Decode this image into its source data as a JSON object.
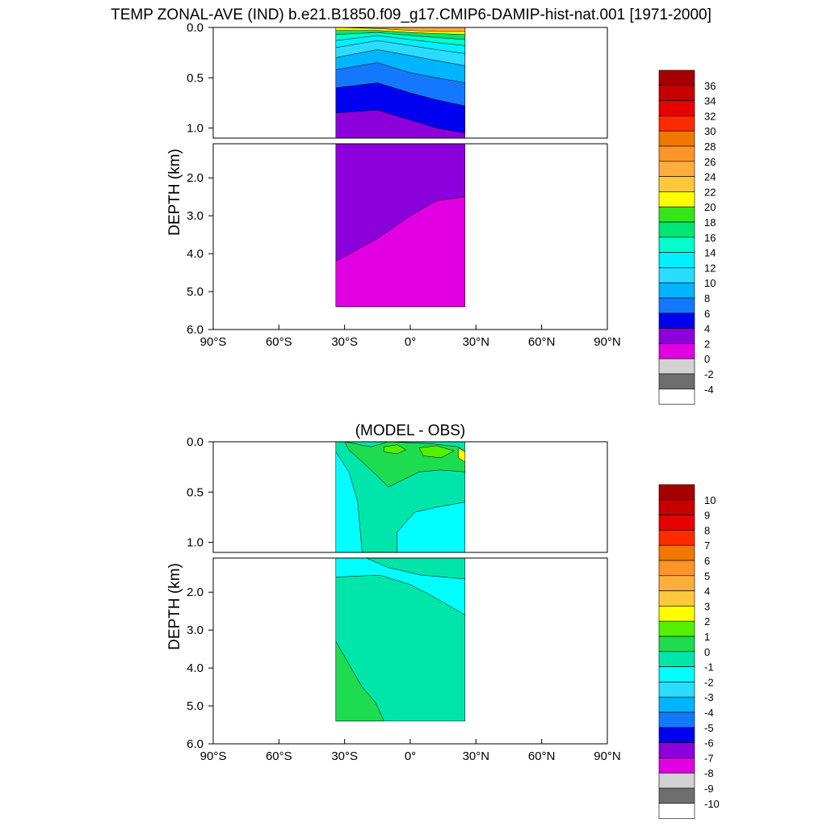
{
  "title": "TEMP ZONAL-AVE (IND) b.e21.B1850.f09_g17.CMIP6-DAMIP-hist-nat.001 [1971-2000]",
  "chart_data": [
    {
      "type": "heatmap",
      "title": "TEMP ZONAL-AVE (IND) b.e21.B1850.f09_g17.CMIP6-DAMIP-hist-nat.001 [1971-2000]",
      "ylabel": "DEPTH (km)",
      "xlim": [
        -90,
        90
      ],
      "ylim": [
        6.0,
        0.0
      ],
      "upper_panel_depth": [
        0.0,
        1.1
      ],
      "lower_panel_depth": [
        1.1,
        6.0
      ],
      "x_ticks": [
        {
          "value": -90,
          "label": "90°S"
        },
        {
          "value": -60,
          "label": "60°S"
        },
        {
          "value": -30,
          "label": "30°S"
        },
        {
          "value": 0,
          "label": "0°"
        },
        {
          "value": 30,
          "label": "30°N"
        },
        {
          "value": 60,
          "label": "60°N"
        },
        {
          "value": 90,
          "label": "90°N"
        }
      ],
      "y_ticks_upper": [
        {
          "value": 0.0,
          "label": "0.0"
        },
        {
          "value": 0.5,
          "label": "0.5"
        },
        {
          "value": 1.0,
          "label": "1.0"
        }
      ],
      "y_ticks_lower": [
        {
          "value": 2.0,
          "label": "2.0"
        },
        {
          "value": 3.0,
          "label": "3.0"
        },
        {
          "value": 4.0,
          "label": "4.0"
        },
        {
          "value": 5.0,
          "label": "5.0"
        },
        {
          "value": 6.0,
          "label": "6.0"
        }
      ],
      "colorbar": {
        "labels": [
          "36",
          "34",
          "32",
          "30",
          "28",
          "26",
          "24",
          "22",
          "20",
          "18",
          "16",
          "14",
          "12",
          "10",
          "8",
          "6",
          "4",
          "2",
          "0",
          "-2",
          "-4"
        ],
        "colors": [
          "#a50000",
          "#c80000",
          "#e60000",
          "#ff2a00",
          "#f07800",
          "#ff9428",
          "#ffad3c",
          "#ffc83c",
          "#ffff00",
          "#33e619",
          "#00e673",
          "#00ffcc",
          "#00f0ff",
          "#2adcff",
          "#00b4ff",
          "#1478ff",
          "#0000f0",
          "#8c00dc",
          "#e100e1",
          "#d2d2d2",
          "#6e6e6e",
          "#ffffff"
        ]
      },
      "ocean_extent": {
        "lat_south": -34,
        "lat_north": 25,
        "max_depth": 5.4
      },
      "field_layers": [
        {
          "value": 4,
          "depth": [
            1.1,
            1.1,
            1.1,
            1.1,
            1.1
          ]
        },
        {
          "value": 6,
          "depth": [
            0.85,
            0.82,
            0.92,
            1.0,
            1.05
          ]
        },
        {
          "value": 8,
          "depth": [
            0.6,
            0.55,
            0.65,
            0.72,
            0.78
          ]
        },
        {
          "value": 10,
          "depth": [
            0.42,
            0.35,
            0.45,
            0.5,
            0.55
          ]
        },
        {
          "value": 12,
          "depth": [
            0.3,
            0.22,
            0.28,
            0.33,
            0.38
          ]
        },
        {
          "value": 14,
          "depth": [
            0.2,
            0.13,
            0.18,
            0.22,
            0.26
          ]
        },
        {
          "value": 16,
          "depth": [
            0.13,
            0.08,
            0.12,
            0.15,
            0.18
          ]
        },
        {
          "value": 18,
          "depth": [
            0.07,
            0.05,
            0.08,
            0.1,
            0.12
          ]
        },
        {
          "value": 22,
          "depth": [
            0.03,
            0.03,
            0.05,
            0.06,
            0.07
          ]
        },
        {
          "value": 26,
          "depth": [
            0.0,
            0.01,
            0.03,
            0.04,
            0.04
          ]
        }
      ],
      "deep_layers": [
        {
          "value": 2,
          "depth": [
            4.2,
            3.6,
            3.0,
            2.6,
            2.5
          ]
        }
      ],
      "deep_base_value": 4
    },
    {
      "type": "heatmap",
      "title": "(MODEL - OBS)",
      "ylabel": "DEPTH (km)",
      "xlim": [
        -90,
        90
      ],
      "ylim": [
        6.0,
        0.0
      ],
      "upper_panel_depth": [
        0.0,
        1.1
      ],
      "lower_panel_depth": [
        1.1,
        6.0
      ],
      "x_ticks": [
        {
          "value": -90,
          "label": "90°S"
        },
        {
          "value": -60,
          "label": "60°S"
        },
        {
          "value": -30,
          "label": "30°S"
        },
        {
          "value": 0,
          "label": "0°"
        },
        {
          "value": 30,
          "label": "30°N"
        },
        {
          "value": 60,
          "label": "60°N"
        },
        {
          "value": 90,
          "label": "90°N"
        }
      ],
      "y_ticks_upper": [
        {
          "value": 0.0,
          "label": "0.0"
        },
        {
          "value": 0.5,
          "label": "0.5"
        },
        {
          "value": 1.0,
          "label": "1.0"
        }
      ],
      "y_ticks_lower": [
        {
          "value": 2.0,
          "label": "2.0"
        },
        {
          "value": 3.0,
          "label": "3.0"
        },
        {
          "value": 4.0,
          "label": "4.0"
        },
        {
          "value": 5.0,
          "label": "5.0"
        },
        {
          "value": 6.0,
          "label": "6.0"
        }
      ],
      "colorbar": {
        "labels": [
          "10",
          "9",
          "8",
          "7",
          "6",
          "5",
          "4",
          "3",
          "2",
          "1",
          "0",
          "-1",
          "-2",
          "-3",
          "-4",
          "-5",
          "-6",
          "-7",
          "-8",
          "-9",
          "-10"
        ],
        "colors": [
          "#a50000",
          "#c80000",
          "#e60000",
          "#ff2a00",
          "#f07800",
          "#ff9428",
          "#ffad3c",
          "#ffc83c",
          "#ffff00",
          "#55f000",
          "#1edc50",
          "#00e6aa",
          "#00ffff",
          "#2adcff",
          "#00b4ff",
          "#1478ff",
          "#0000f0",
          "#8c00dc",
          "#e100e1",
          "#d2d2d2",
          "#6e6e6e",
          "#ffffff"
        ]
      },
      "ocean_extent": {
        "lat_south": -34,
        "lat_north": 25,
        "max_depth": 5.4
      },
      "surface_base_value": 0,
      "surface_regions": [
        {
          "value": -1,
          "points": [
            [
              -34,
              0.1
            ],
            [
              -28,
              0.3
            ],
            [
              -24,
              0.6
            ],
            [
              -22,
              1.1
            ],
            [
              -34,
              1.1
            ]
          ]
        },
        {
          "value": -1,
          "points": [
            [
              -6,
              0.9
            ],
            [
              2,
              0.7
            ],
            [
              12,
              0.65
            ],
            [
              25,
              0.6
            ],
            [
              25,
              1.1
            ],
            [
              -6,
              1.1
            ]
          ]
        },
        {
          "value": 1,
          "points": [
            [
              -30,
              0.0
            ],
            [
              -18,
              0.05
            ],
            [
              -10,
              0.0
            ],
            [
              10,
              0.02
            ],
            [
              22,
              0.05
            ],
            [
              25,
              0.1
            ],
            [
              25,
              0.3
            ],
            [
              14,
              0.28
            ],
            [
              4,
              0.3
            ],
            [
              -10,
              0.45
            ],
            [
              -16,
              0.32
            ],
            [
              -22,
              0.2
            ],
            [
              -28,
              0.08
            ]
          ]
        },
        {
          "value": 2,
          "points": [
            [
              -12,
              0.05
            ],
            [
              -6,
              0.03
            ],
            [
              -2,
              0.08
            ],
            [
              -6,
              0.12
            ],
            [
              -12,
              0.1
            ]
          ]
        },
        {
          "value": 2,
          "points": [
            [
              4,
              0.06
            ],
            [
              12,
              0.04
            ],
            [
              20,
              0.09
            ],
            [
              14,
              0.16
            ],
            [
              6,
              0.14
            ]
          ]
        },
        {
          "value": 3,
          "points": [
            [
              22,
              0.06
            ],
            [
              25,
              0.1
            ],
            [
              25,
              0.2
            ],
            [
              22,
              0.16
            ]
          ]
        }
      ],
      "deep_base_value": 0,
      "deep_regions": [
        {
          "value": -1,
          "points": [
            [
              -34,
              1.1
            ],
            [
              -20,
              1.1
            ],
            [
              -10,
              1.35
            ],
            [
              5,
              1.55
            ],
            [
              25,
              1.65
            ],
            [
              25,
              2.6
            ],
            [
              10,
              2.1
            ],
            [
              0,
              1.8
            ],
            [
              -14,
              1.55
            ],
            [
              -34,
              1.6
            ]
          ]
        },
        {
          "value": 1,
          "points": [
            [
              -34,
              3.3
            ],
            [
              -28,
              3.9
            ],
            [
              -22,
              4.5
            ],
            [
              -16,
              4.9
            ],
            [
              -12,
              5.4
            ],
            [
              -34,
              5.4
            ]
          ]
        }
      ]
    }
  ]
}
